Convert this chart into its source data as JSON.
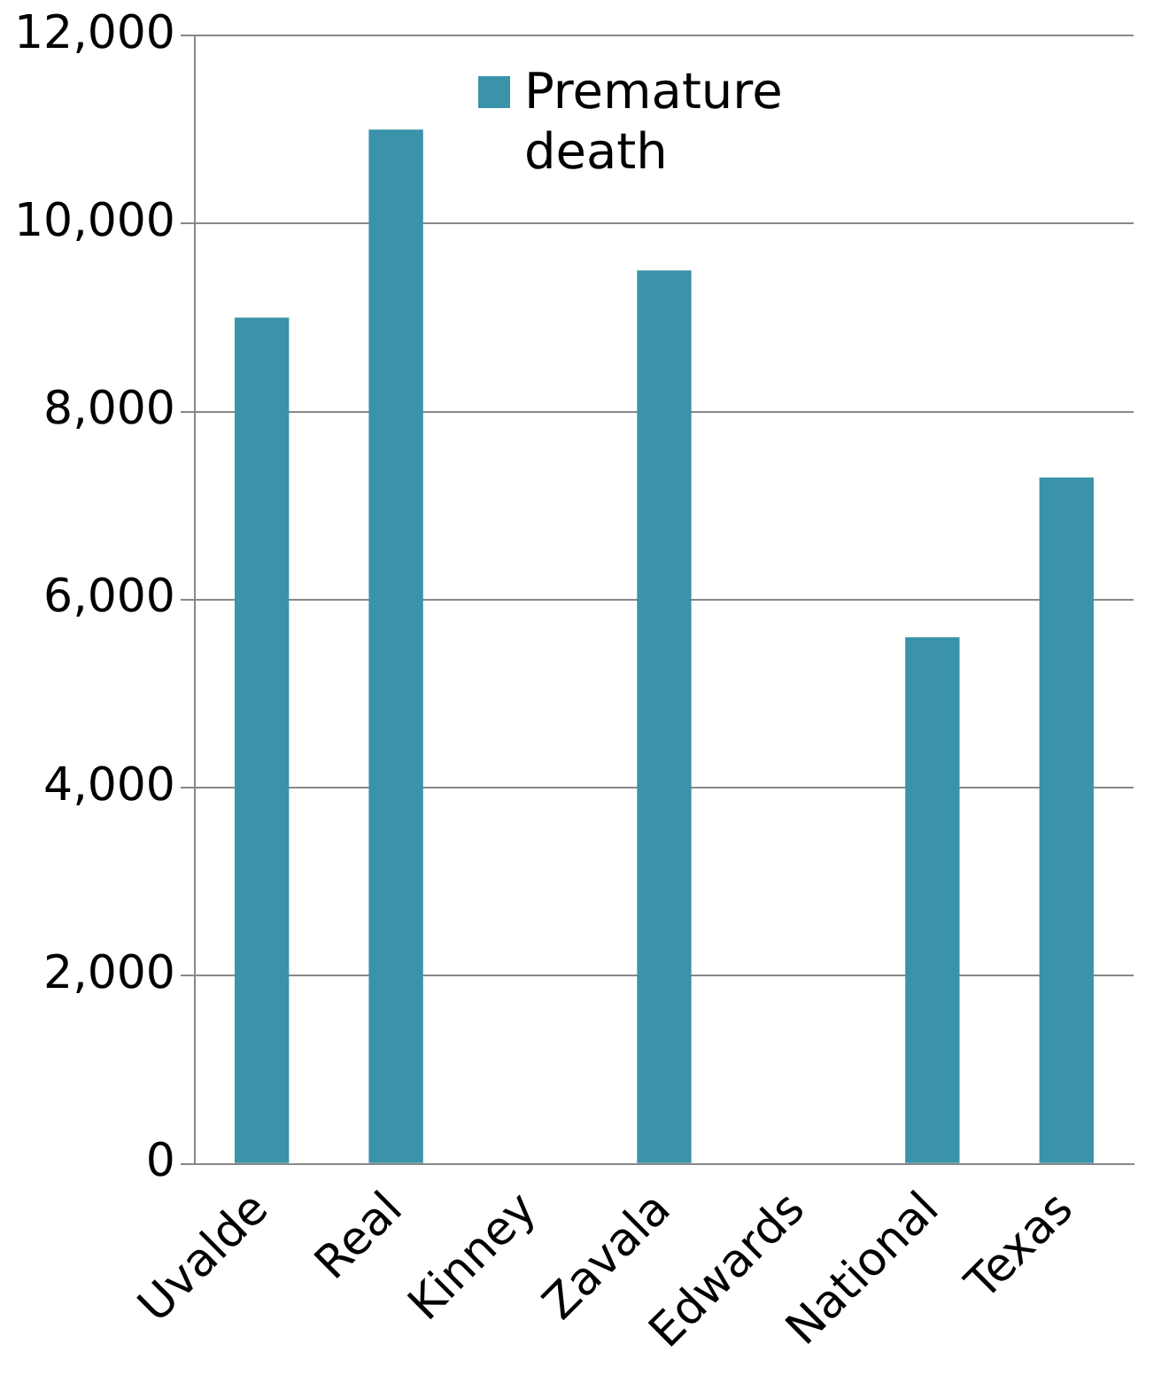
{
  "chart_data": {
    "type": "bar",
    "categories": [
      "Uvalde",
      "Real",
      "Kinney",
      "Zavala",
      "Edwards",
      "National",
      "Texas"
    ],
    "series": [
      {
        "name": "Premature death",
        "color": "#3a93a8",
        "values": [
          9000,
          11000,
          0,
          9500,
          0,
          5600,
          7300
        ]
      }
    ],
    "ylim": [
      0,
      12000
    ],
    "yticks": [
      {
        "value": 0,
        "label": "0"
      },
      {
        "value": 2000,
        "label": "2,000"
      },
      {
        "value": 4000,
        "label": "4,000"
      },
      {
        "value": 6000,
        "label": "6,000"
      },
      {
        "value": 8000,
        "label": "8,000"
      },
      {
        "value": 10000,
        "label": "10,000"
      },
      {
        "value": 12000,
        "label": "12,000"
      }
    ],
    "grid": "y",
    "legend": "top right"
  }
}
